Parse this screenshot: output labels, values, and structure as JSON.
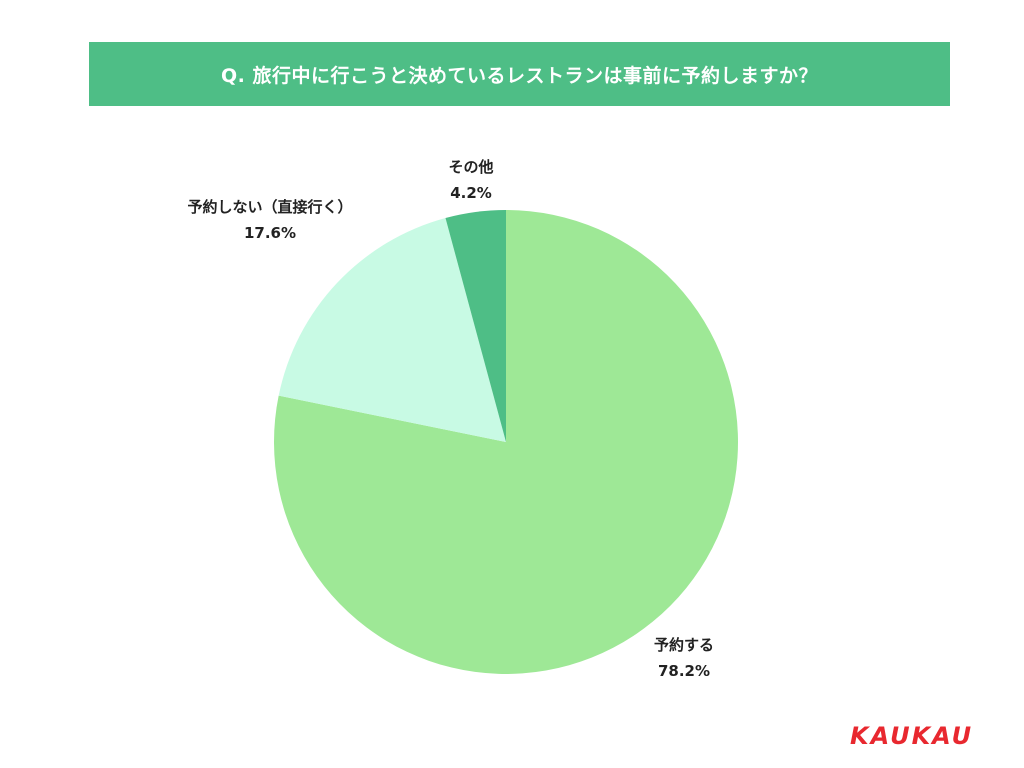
{
  "title": "Q. 旅行中に行こうと決めているレストランは事前に予約しますか？",
  "logo_text": "KAUKAU",
  "colors": {
    "banner": "#4ebe86",
    "logo": "#e8282f"
  },
  "chart_data": {
    "type": "pie",
    "title": "Q. 旅行中に行こうと決めているレストランは事前に予約しますか？",
    "slices": [
      {
        "label": "予約する",
        "value": 78.2,
        "value_label": "78.2%",
        "color": "#9ee896"
      },
      {
        "label": "予約しない（直接行く）",
        "value": 17.6,
        "value_label": "17.6%",
        "color": "#c8fae4"
      },
      {
        "label": "その他",
        "value": 4.2,
        "value_label": "4.2%",
        "color": "#4ebe86"
      }
    ],
    "start_angle": "12 o'clock",
    "direction": "clockwise",
    "legend": "none"
  }
}
